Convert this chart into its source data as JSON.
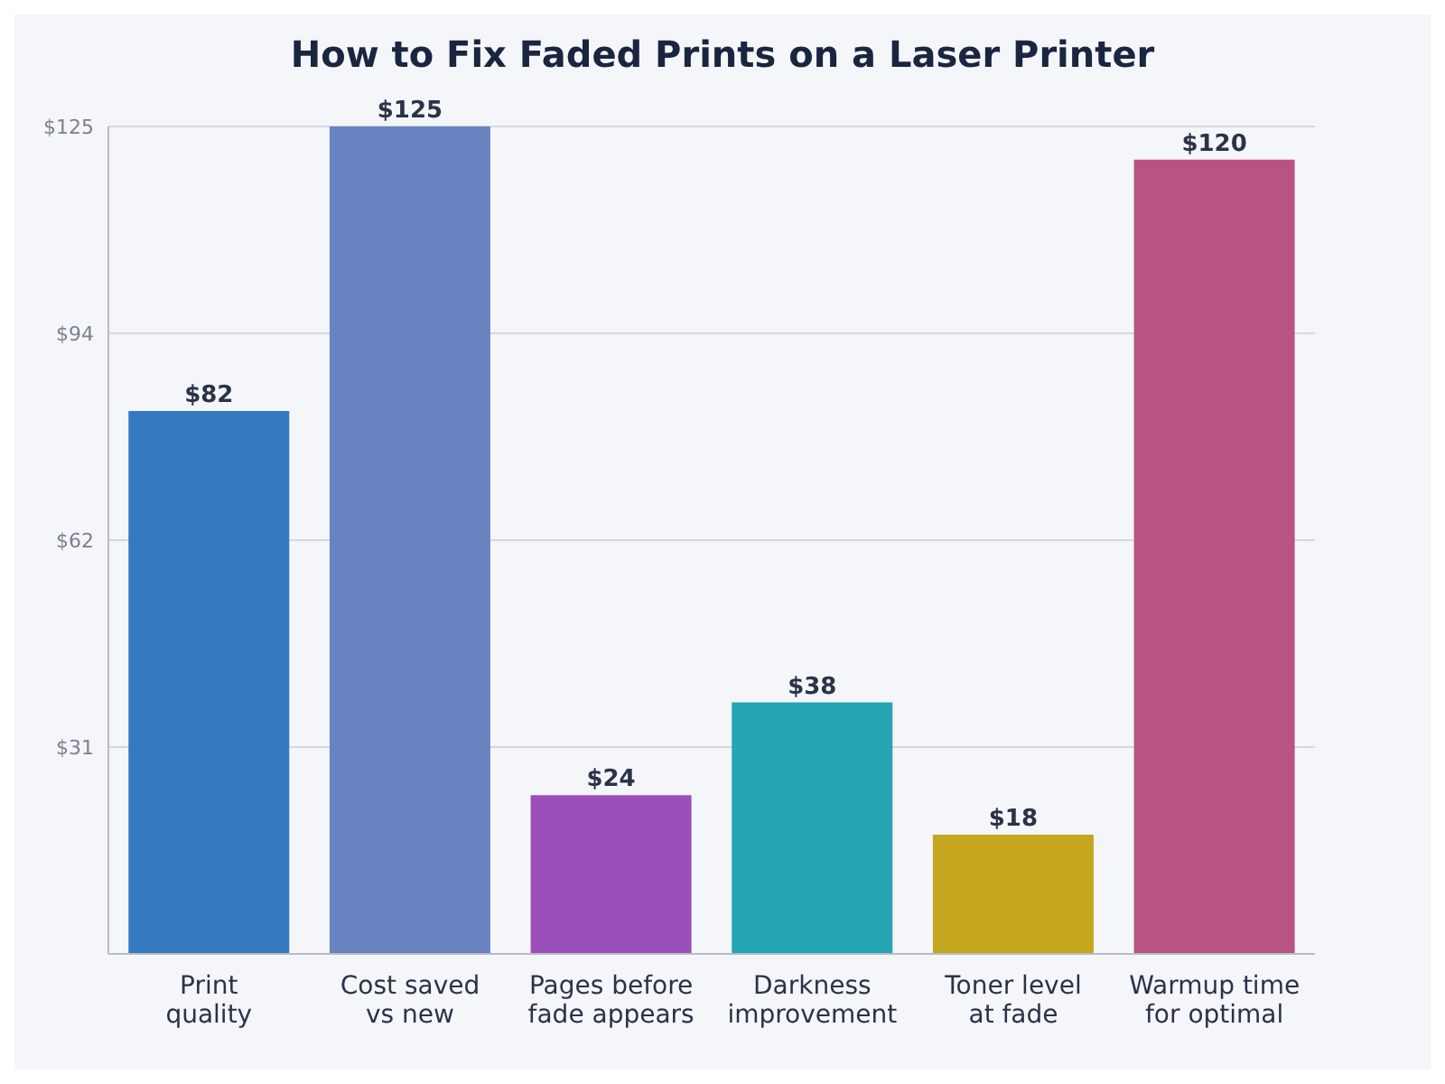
{
  "chart_data": {
    "type": "bar",
    "title": "How to Fix Faded Prints on a Laser Printer",
    "categories": [
      "Print quality",
      "Cost saved vs new",
      "Pages before fade appears",
      "Darkness improvement",
      "Toner level at fade",
      "Warmup time for optimal"
    ],
    "values": [
      82,
      125,
      24,
      38,
      18,
      120
    ],
    "value_labels": [
      "$82",
      "$125",
      "$24",
      "$38",
      "$18",
      "$120"
    ],
    "colors": [
      "#3579c1",
      "#6883c0",
      "#9b4fbb",
      "#26a5b5",
      "#c4a71f",
      "#b85383"
    ],
    "ylim": [
      0,
      125
    ],
    "yticks": [
      {
        "value": 31.25,
        "label": "$31"
      },
      {
        "value": 62.5,
        "label": "$62"
      },
      {
        "value": 93.75,
        "label": "$94"
      },
      {
        "value": 125,
        "label": "$125"
      }
    ],
    "grid": "y"
  }
}
